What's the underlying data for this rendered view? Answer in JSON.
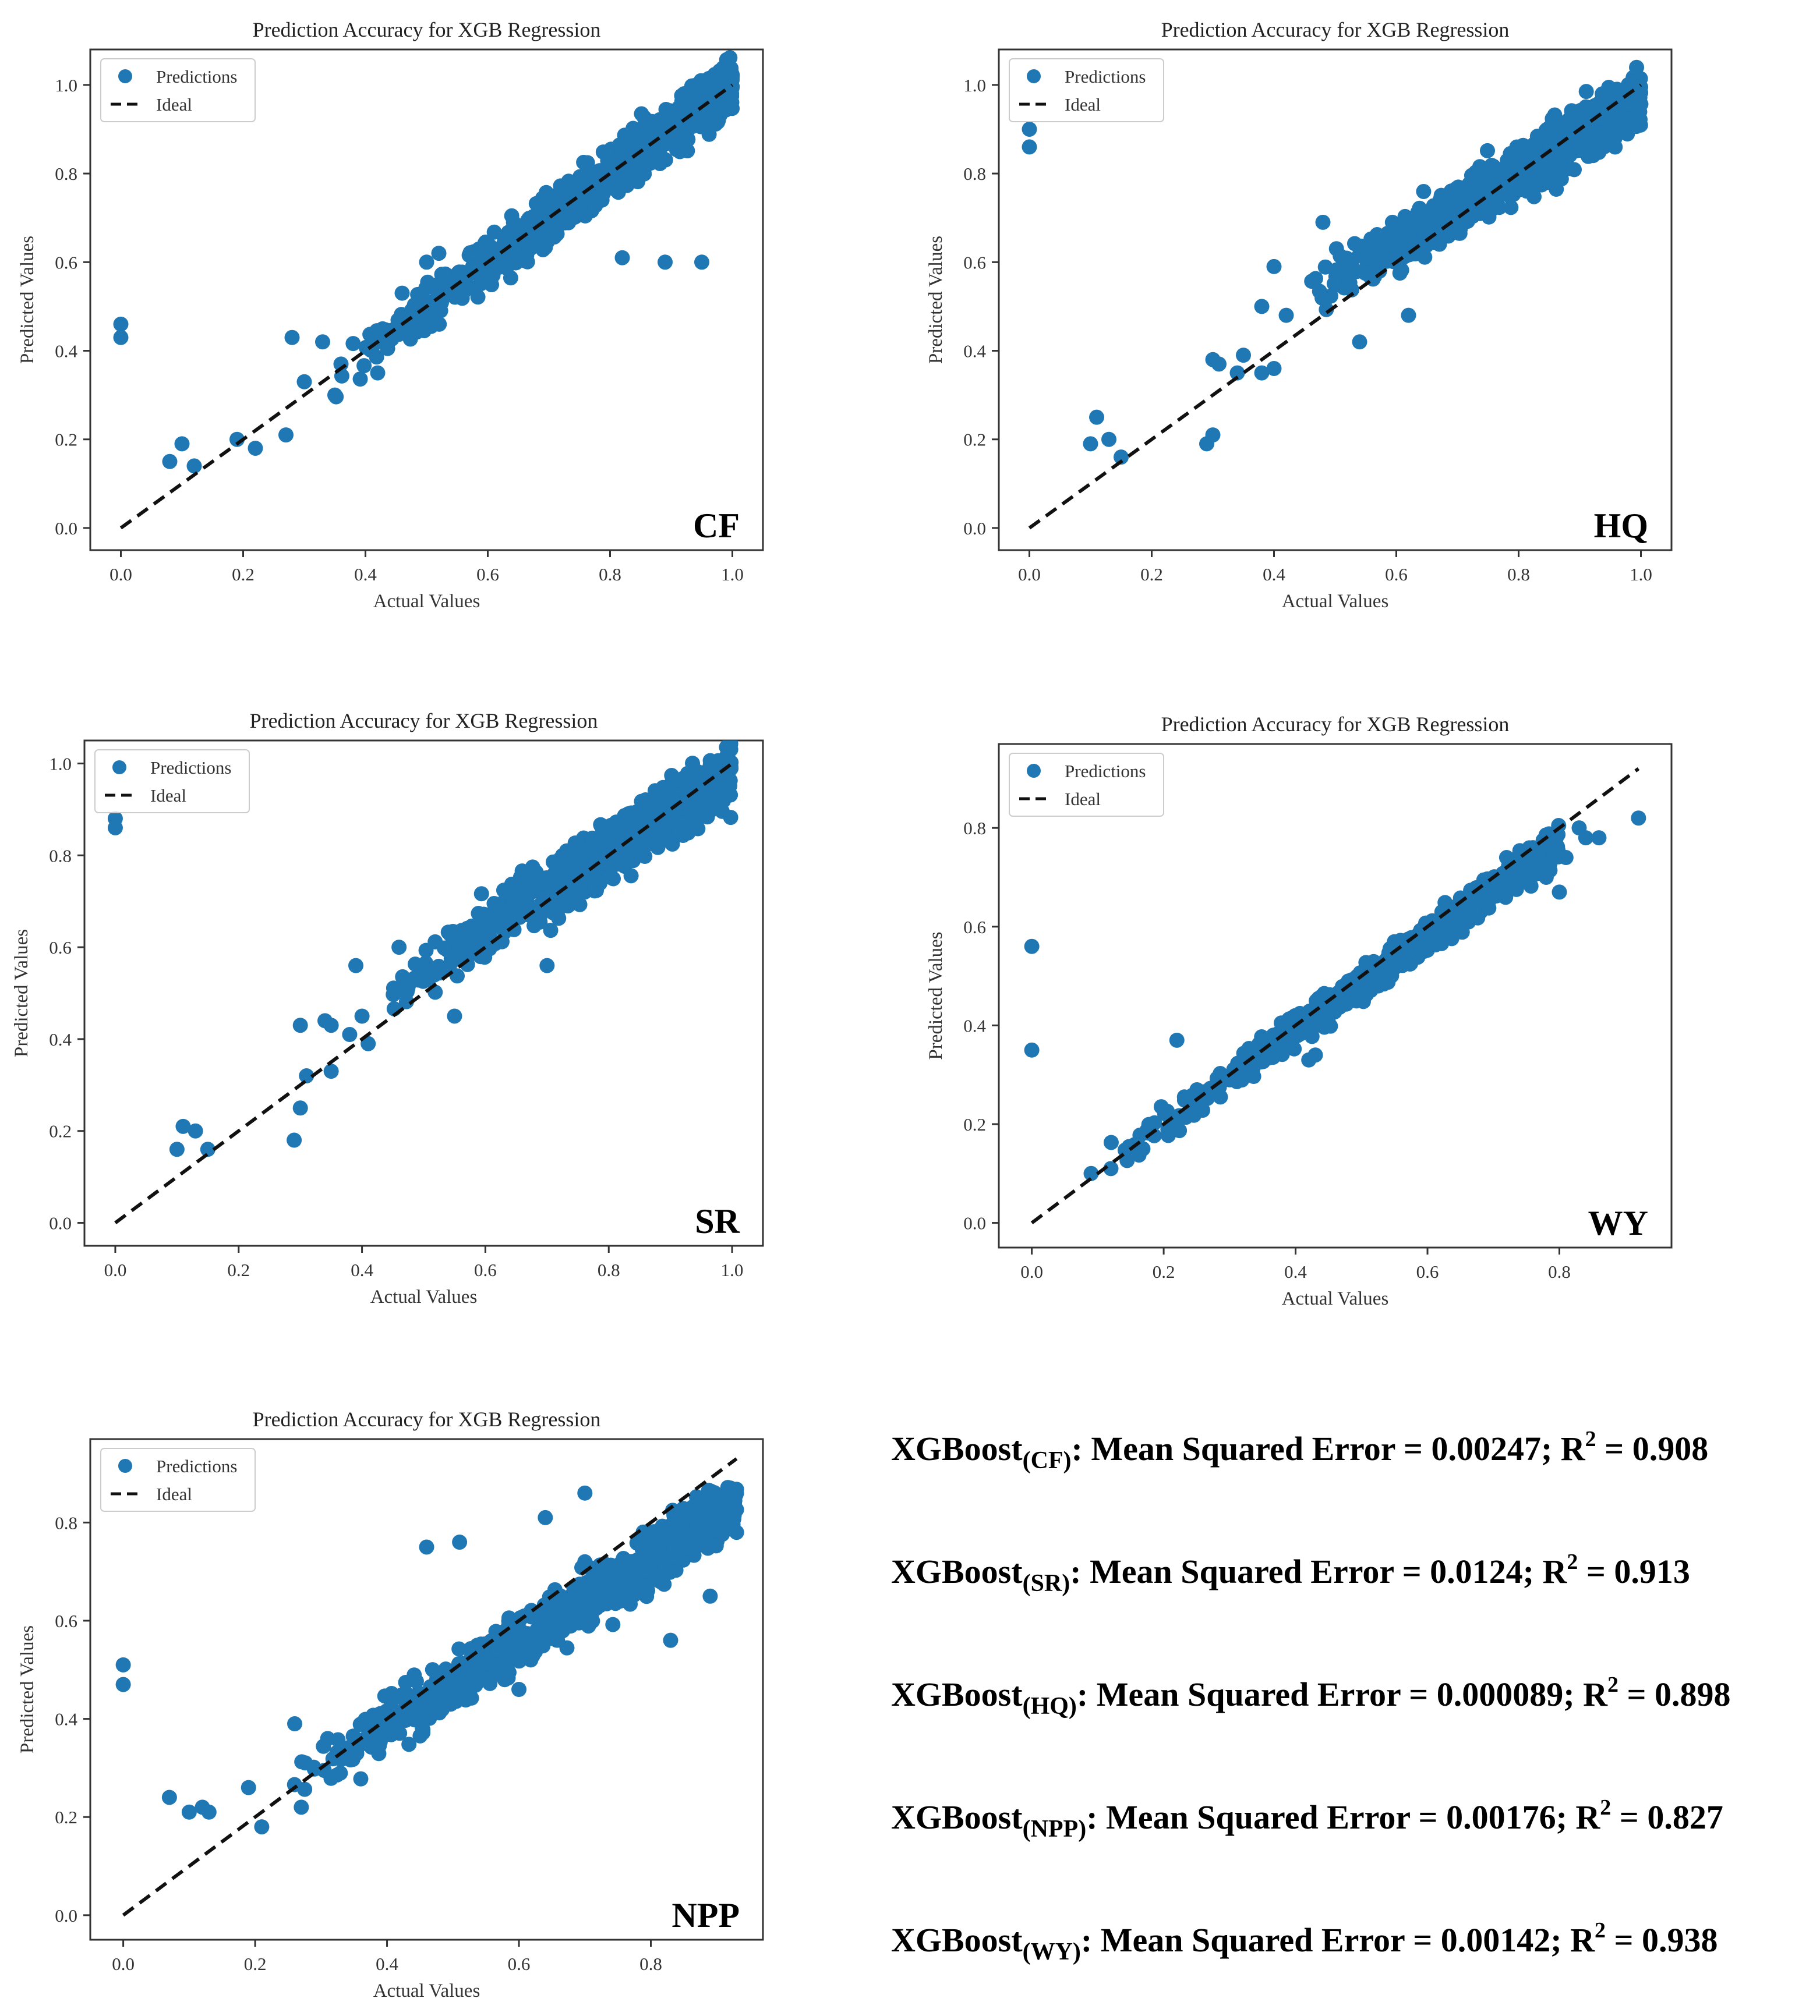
{
  "chart_data": [
    {
      "type": "scatter",
      "panel": "CF",
      "title": "Prediction Accuracy for XGB Regression",
      "xlabel": "Actual Values",
      "ylabel": "Predicted Values",
      "xlim": [
        -0.05,
        1.05
      ],
      "ylim": [
        -0.05,
        1.08
      ],
      "xticks": [
        "0.0",
        "0.2",
        "0.4",
        "0.6",
        "0.8",
        "1.0"
      ],
      "xtick_values": [
        0,
        0.2,
        0.4,
        0.6,
        0.8,
        1.0
      ],
      "yticks": [
        "0.0",
        "0.2",
        "0.4",
        "0.6",
        "0.8",
        "1.0"
      ],
      "ytick_values": [
        0,
        0.2,
        0.4,
        0.6,
        0.8,
        1.0
      ],
      "legend": [
        "Predictions",
        "Ideal"
      ],
      "legend_position": "upper-left",
      "ideal_line": [
        [
          0,
          0
        ],
        [
          1.0,
          1.0
        ]
      ],
      "cloud": {
        "x_range": [
          0.35,
          1.0
        ],
        "slope": 1.0,
        "intercept": 0.0,
        "spread": 0.055,
        "n": 900,
        "seed": 11
      },
      "points": [
        [
          0,
          0.46
        ],
        [
          0,
          0.43
        ],
        [
          0.08,
          0.15
        ],
        [
          0.1,
          0.19
        ],
        [
          0.12,
          0.14
        ],
        [
          0.19,
          0.2
        ],
        [
          0.22,
          0.18
        ],
        [
          0.27,
          0.21
        ],
        [
          0.28,
          0.43
        ],
        [
          0.3,
          0.33
        ],
        [
          0.33,
          0.42
        ],
        [
          0.35,
          0.3
        ],
        [
          0.36,
          0.37
        ],
        [
          0.42,
          0.35
        ],
        [
          0.95,
          0.6
        ],
        [
          0.89,
          0.6
        ],
        [
          0.82,
          0.61
        ],
        [
          0.46,
          0.53
        ],
        [
          0.52,
          0.62
        ],
        [
          0.5,
          0.6
        ]
      ]
    },
    {
      "type": "scatter",
      "panel": "HQ",
      "title": "Prediction Accuracy for XGB Regression",
      "xlabel": "Actual Values",
      "ylabel": "Predicted Values",
      "xlim": [
        -0.05,
        1.05
      ],
      "ylim": [
        -0.05,
        1.08
      ],
      "xticks": [
        "0.0",
        "0.2",
        "0.4",
        "0.6",
        "0.8",
        "1.0"
      ],
      "xtick_values": [
        0,
        0.2,
        0.4,
        0.6,
        0.8,
        1.0
      ],
      "yticks": [
        "0.0",
        "0.2",
        "0.4",
        "0.6",
        "0.8",
        "1.0"
      ],
      "ytick_values": [
        0,
        0.2,
        0.4,
        0.6,
        0.8,
        1.0
      ],
      "legend": [
        "Predictions",
        "Ideal"
      ],
      "legend_position": "upper-left",
      "ideal_line": [
        [
          0,
          0
        ],
        [
          1.0,
          1.0
        ]
      ],
      "cloud": {
        "x_range": [
          0.45,
          1.0
        ],
        "slope": 0.83,
        "intercept": 0.14,
        "spread": 0.06,
        "n": 900,
        "seed": 23
      },
      "points": [
        [
          0,
          0.9
        ],
        [
          0,
          0.86
        ],
        [
          0.1,
          0.19
        ],
        [
          0.11,
          0.25
        ],
        [
          0.13,
          0.2
        ],
        [
          0.15,
          0.16
        ],
        [
          0.29,
          0.19
        ],
        [
          0.3,
          0.21
        ],
        [
          0.3,
          0.38
        ],
        [
          0.31,
          0.37
        ],
        [
          0.34,
          0.35
        ],
        [
          0.35,
          0.39
        ],
        [
          0.38,
          0.35
        ],
        [
          0.4,
          0.36
        ],
        [
          0.38,
          0.5
        ],
        [
          0.4,
          0.59
        ],
        [
          0.48,
          0.69
        ],
        [
          0.42,
          0.48
        ],
        [
          0.54,
          0.42
        ],
        [
          0.62,
          0.48
        ]
      ]
    },
    {
      "type": "scatter",
      "panel": "SR",
      "title": "Prediction Accuracy for XGB Regression",
      "xlabel": "Actual Values",
      "ylabel": "Predicted Values",
      "xlim": [
        -0.05,
        1.05
      ],
      "ylim": [
        -0.05,
        1.05
      ],
      "xticks": [
        "0.0",
        "0.2",
        "0.4",
        "0.6",
        "0.8",
        "1.0"
      ],
      "xtick_values": [
        0,
        0.2,
        0.4,
        0.6,
        0.8,
        1.0
      ],
      "yticks": [
        "0.0",
        "0.2",
        "0.4",
        "0.6",
        "0.8",
        "1.0"
      ],
      "ytick_values": [
        0,
        0.2,
        0.4,
        0.6,
        0.8,
        1.0
      ],
      "legend": [
        "Predictions",
        "Ideal"
      ],
      "legend_position": "upper-left",
      "ideal_line": [
        [
          0,
          0
        ],
        [
          1.0,
          1.0
        ]
      ],
      "cloud": {
        "x_range": [
          0.42,
          1.0
        ],
        "slope": 0.85,
        "intercept": 0.13,
        "spread": 0.06,
        "n": 900,
        "seed": 37
      },
      "points": [
        [
          0,
          0.88
        ],
        [
          0,
          0.86
        ],
        [
          0.1,
          0.16
        ],
        [
          0.11,
          0.21
        ],
        [
          0.13,
          0.2
        ],
        [
          0.15,
          0.16
        ],
        [
          0.29,
          0.18
        ],
        [
          0.3,
          0.25
        ],
        [
          0.3,
          0.43
        ],
        [
          0.31,
          0.32
        ],
        [
          0.34,
          0.44
        ],
        [
          0.35,
          0.43
        ],
        [
          0.35,
          0.33
        ],
        [
          0.38,
          0.41
        ],
        [
          0.41,
          0.39
        ],
        [
          0.4,
          0.45
        ],
        [
          0.39,
          0.56
        ],
        [
          0.46,
          0.6
        ],
        [
          0.55,
          0.45
        ],
        [
          0.7,
          0.56
        ]
      ]
    },
    {
      "type": "scatter",
      "panel": "WY",
      "title": "Prediction Accuracy for XGB Regression",
      "xlabel": "Actual Values",
      "ylabel": "Predicted Values",
      "xlim": [
        -0.05,
        0.97
      ],
      "ylim": [
        -0.05,
        0.97
      ],
      "xticks": [
        "0.0",
        "0.2",
        "0.4",
        "0.6",
        "0.8"
      ],
      "xtick_values": [
        0,
        0.2,
        0.4,
        0.6,
        0.8
      ],
      "yticks": [
        "0.0",
        "0.2",
        "0.4",
        "0.6",
        "0.8"
      ],
      "ytick_values": [
        0,
        0.2,
        0.4,
        0.6,
        0.8
      ],
      "legend": [
        "Predictions",
        "Ideal"
      ],
      "legend_position": "upper-left",
      "ideal_line": [
        [
          0,
          0
        ],
        [
          0.92,
          0.92
        ]
      ],
      "cloud": {
        "x_range": [
          0.1,
          0.8
        ],
        "slope": 0.95,
        "intercept": 0.01,
        "spread": 0.03,
        "n": 900,
        "seed": 51
      },
      "points": [
        [
          0,
          0.56
        ],
        [
          0,
          0.35
        ],
        [
          0.22,
          0.37
        ],
        [
          0.09,
          0.1
        ],
        [
          0.12,
          0.11
        ],
        [
          0.42,
          0.33
        ],
        [
          0.43,
          0.34
        ],
        [
          0.74,
          0.71
        ],
        [
          0.78,
          0.7
        ],
        [
          0.8,
          0.67
        ],
        [
          0.81,
          0.74
        ],
        [
          0.83,
          0.8
        ],
        [
          0.84,
          0.78
        ],
        [
          0.86,
          0.78
        ],
        [
          0.92,
          0.82
        ],
        [
          0.72,
          0.74
        ],
        [
          0.76,
          0.76
        ]
      ]
    },
    {
      "type": "scatter",
      "panel": "NPP",
      "title": "Prediction Accuracy for XGB Regression",
      "xlabel": "Actual Values",
      "ylabel": "Predicted Values",
      "xlim": [
        -0.05,
        0.97
      ],
      "ylim": [
        -0.05,
        0.97
      ],
      "xticks": [
        "0.0",
        "0.2",
        "0.4",
        "0.6",
        "0.8"
      ],
      "xtick_values": [
        0,
        0.2,
        0.4,
        0.6,
        0.8
      ],
      "yticks": [
        "0.0",
        "0.2",
        "0.4",
        "0.6",
        "0.8"
      ],
      "ytick_values": [
        0,
        0.2,
        0.4,
        0.6,
        0.8
      ],
      "legend": [
        "Predictions",
        "Ideal"
      ],
      "legend_position": "upper-left",
      "ideal_line": [
        [
          0,
          0
        ],
        [
          0.93,
          0.93
        ]
      ],
      "cloud": {
        "x_range": [
          0.25,
          0.93
        ],
        "slope": 0.83,
        "intercept": 0.06,
        "spread": 0.055,
        "n": 900,
        "seed": 73
      },
      "points": [
        [
          0,
          0.51
        ],
        [
          0,
          0.47
        ],
        [
          0.07,
          0.24
        ],
        [
          0.1,
          0.21
        ],
        [
          0.12,
          0.22
        ],
        [
          0.13,
          0.21
        ],
        [
          0.19,
          0.26
        ],
        [
          0.21,
          0.18
        ],
        [
          0.26,
          0.39
        ],
        [
          0.27,
          0.22
        ],
        [
          0.46,
          0.75
        ],
        [
          0.51,
          0.76
        ],
        [
          0.6,
          0.46
        ],
        [
          0.7,
          0.72
        ],
        [
          0.83,
          0.56
        ],
        [
          0.89,
          0.65
        ],
        [
          0.93,
          0.78
        ],
        [
          0.64,
          0.81
        ],
        [
          0.7,
          0.86
        ]
      ]
    }
  ],
  "panel_labels": [
    "CF",
    "HQ",
    "SR",
    "WY",
    "NPP"
  ],
  "metrics": [
    {
      "model": "XGBoost",
      "target": "(CF)",
      "text": ": Mean Squared Error = 0.00247; R",
      "sup": "2",
      "tail": " = 0.908"
    },
    {
      "model": "XGBoost",
      "target": "(SR)",
      "text": ": Mean Squared Error = 0.0124; R",
      "sup": "2",
      "tail": " = 0.913"
    },
    {
      "model": "XGBoost",
      "target": "(HQ)",
      "text": ": Mean Squared Error = 0.000089; R",
      "sup": "2",
      "tail": " = 0.898"
    },
    {
      "model": "XGBoost",
      "target": "(NPP)",
      "text": ": Mean Squared Error = 0.00176; R",
      "sup": "2",
      "tail": " = 0.827"
    },
    {
      "model": "XGBoost",
      "target": "(WY)",
      "text": ": Mean Squared Error = 0.00142; R",
      "sup": "2",
      "tail": " = 0.938"
    }
  ],
  "colors": {
    "points": "#1f77b4",
    "ideal": "#111111",
    "axes": "#333333"
  }
}
